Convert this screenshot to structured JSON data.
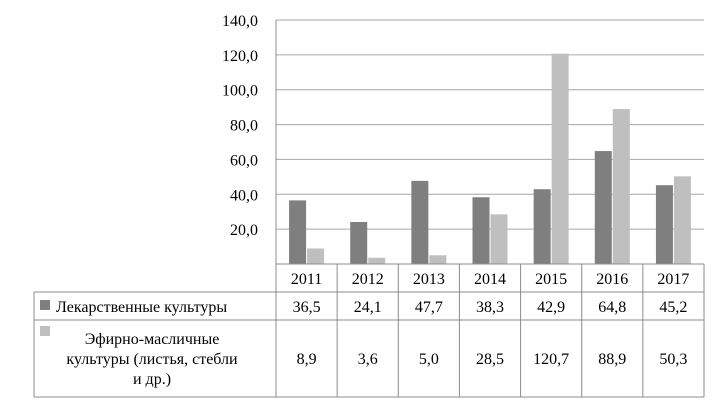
{
  "chart_data": {
    "type": "bar",
    "categories": [
      "2011",
      "2012",
      "2013",
      "2014",
      "2015",
      "2016",
      "2017"
    ],
    "series": [
      {
        "name": "Лекарственные культуры",
        "name_lines": [
          "Лекарственные культуры"
        ],
        "color": "#7f7f7f",
        "values": [
          36.5,
          24.1,
          47.7,
          38.3,
          42.9,
          64.8,
          45.2
        ],
        "labels": [
          "36,5",
          "24,1",
          "47,7",
          "38,3",
          "42,9",
          "64,8",
          "45,2"
        ]
      },
      {
        "name": "Эфирно-масличные культуры (листья, стебли и др.)",
        "name_lines": [
          "Эфирно-масличные",
          "культуры (листья, стебли",
          "и др.)"
        ],
        "color": "#bfbfbf",
        "values": [
          8.9,
          3.6,
          5.0,
          28.5,
          120.7,
          88.9,
          50.3
        ],
        "labels": [
          "8,9",
          "3,6",
          "5,0",
          "28,5",
          "120,7",
          "88,9",
          "50,3"
        ]
      }
    ],
    "ylim": [
      0,
      140
    ],
    "yticks": [
      20,
      40,
      60,
      80,
      100,
      120,
      140
    ],
    "ytick_labels": [
      "20,0",
      "40,0",
      "60,0",
      "80,0",
      "100,0",
      "120,0",
      "140,0"
    ],
    "grid": true,
    "legend": "data-table",
    "title": "",
    "xlabel": "",
    "ylabel": ""
  }
}
